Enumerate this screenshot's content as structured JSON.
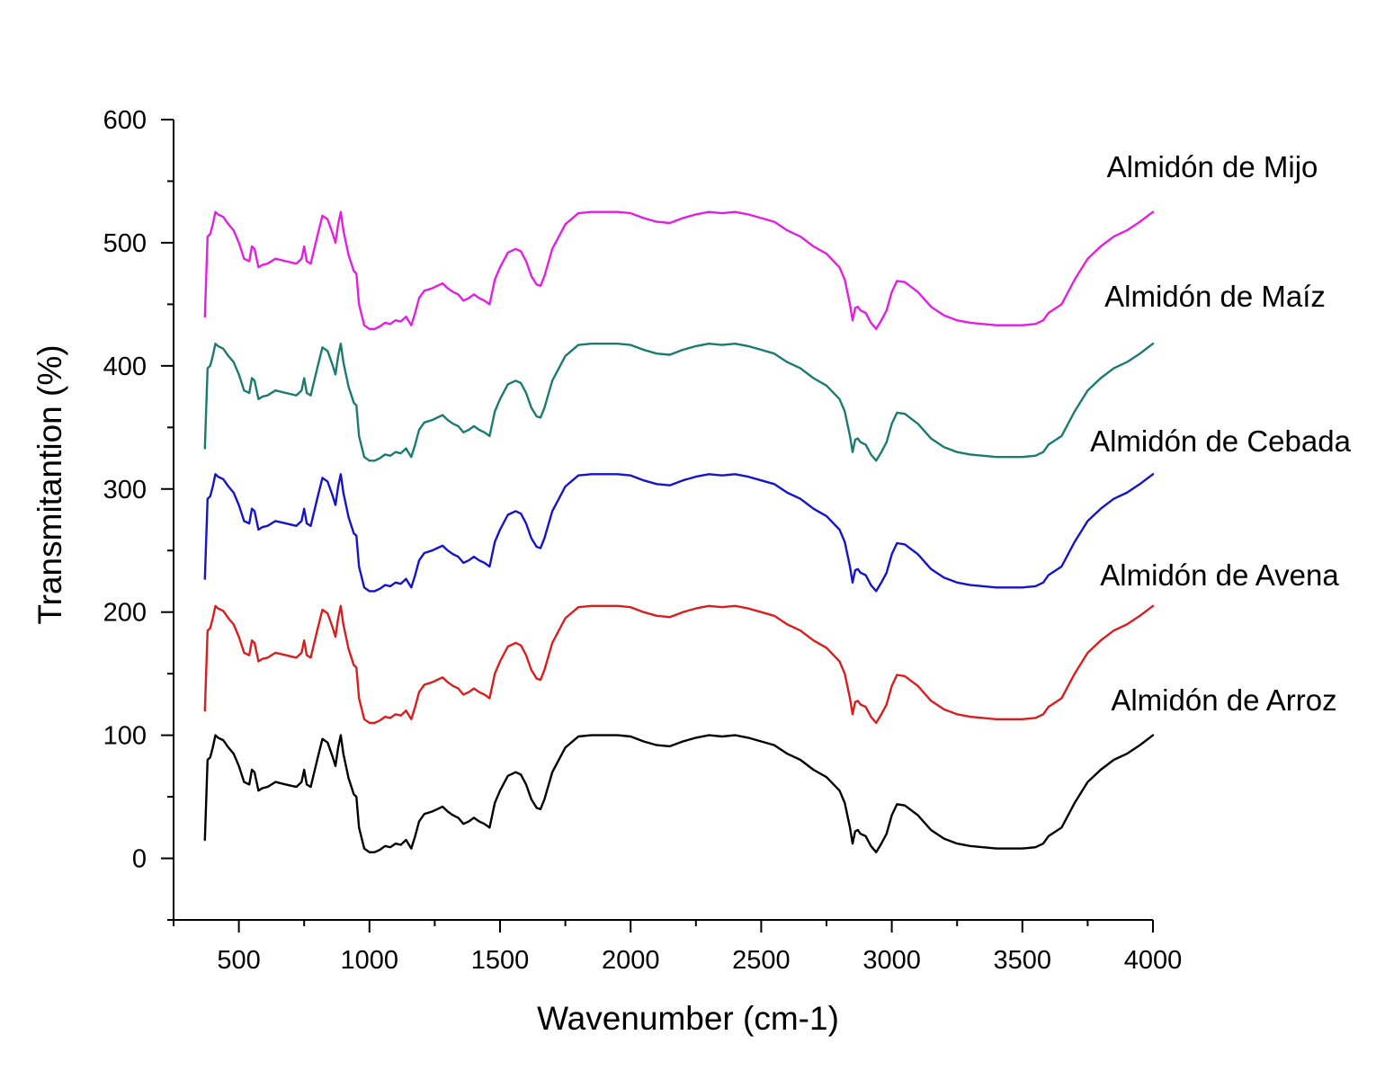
{
  "chart_data": {
    "type": "line",
    "xlabel": "Wavenumber (cm-1)",
    "ylabel": "Transmitantion (%)",
    "xlim": [
      250,
      4000
    ],
    "ylim": [
      -50,
      600
    ],
    "x_ticks": [
      500,
      1000,
      1500,
      2000,
      2500,
      3000,
      3500,
      4000
    ],
    "y_ticks": [
      0,
      100,
      200,
      300,
      400,
      500,
      600
    ],
    "grid": false,
    "base_spectrum_x": [
      370,
      380,
      390,
      400,
      410,
      420,
      440,
      460,
      480,
      500,
      520,
      540,
      550,
      560,
      575,
      590,
      610,
      640,
      680,
      720,
      740,
      750,
      760,
      775,
      800,
      820,
      840,
      860,
      870,
      880,
      890,
      900,
      920,
      940,
      950,
      960,
      980,
      1000,
      1020,
      1040,
      1060,
      1080,
      1100,
      1120,
      1140,
      1160,
      1175,
      1190,
      1210,
      1240,
      1260,
      1280,
      1300,
      1320,
      1340,
      1360,
      1380,
      1400,
      1420,
      1440,
      1460,
      1480,
      1500,
      1530,
      1560,
      1580,
      1600,
      1620,
      1640,
      1655,
      1670,
      1700,
      1750,
      1800,
      1850,
      1900,
      1950,
      2000,
      2050,
      2100,
      2150,
      2200,
      2250,
      2300,
      2350,
      2400,
      2450,
      2500,
      2550,
      2600,
      2650,
      2700,
      2750,
      2800,
      2820,
      2840,
      2850,
      2860,
      2870,
      2880,
      2900,
      2920,
      2940,
      2960,
      2980,
      3000,
      3020,
      3050,
      3100,
      3150,
      3200,
      3250,
      3300,
      3350,
      3400,
      3450,
      3500,
      3550,
      3580,
      3600,
      3650,
      3700,
      3750,
      3800,
      3850,
      3900,
      3950,
      4000
    ],
    "base_spectrum_y": [
      15,
      80,
      82,
      90,
      100,
      98,
      96,
      90,
      85,
      75,
      62,
      60,
      72,
      70,
      55,
      57,
      58,
      62,
      60,
      58,
      62,
      72,
      60,
      58,
      80,
      97,
      94,
      82,
      75,
      90,
      100,
      85,
      65,
      52,
      50,
      25,
      8,
      5,
      5,
      7,
      10,
      9,
      12,
      11,
      15,
      8,
      18,
      30,
      36,
      38,
      40,
      42,
      38,
      35,
      33,
      28,
      30,
      33,
      30,
      28,
      25,
      45,
      55,
      67,
      70,
      68,
      60,
      48,
      41,
      40,
      48,
      70,
      90,
      99,
      100,
      100,
      100,
      99,
      95,
      92,
      91,
      95,
      98,
      100,
      99,
      100,
      98,
      95,
      92,
      85,
      80,
      72,
      66,
      55,
      45,
      25,
      12,
      22,
      23,
      20,
      18,
      10,
      5,
      12,
      20,
      35,
      44,
      43,
      35,
      23,
      16,
      12,
      10,
      9,
      8,
      8,
      8,
      9,
      12,
      18,
      25,
      45,
      62,
      72,
      80,
      85,
      92,
      100
    ],
    "series": [
      {
        "name": "Almidón de Arroz",
        "offset": 0,
        "color": "#000000"
      },
      {
        "name": "Almidón de Avena",
        "offset": 105,
        "color": "#d81e1e"
      },
      {
        "name": "Almidón de Cebada",
        "offset": 212,
        "color": "#1414c8"
      },
      {
        "name": "Almidón de Maíz",
        "offset": 318,
        "color": "#1b7b72"
      },
      {
        "name": "Almidón de Mijo",
        "offset": 425,
        "color": "#e21fe2"
      }
    ]
  }
}
